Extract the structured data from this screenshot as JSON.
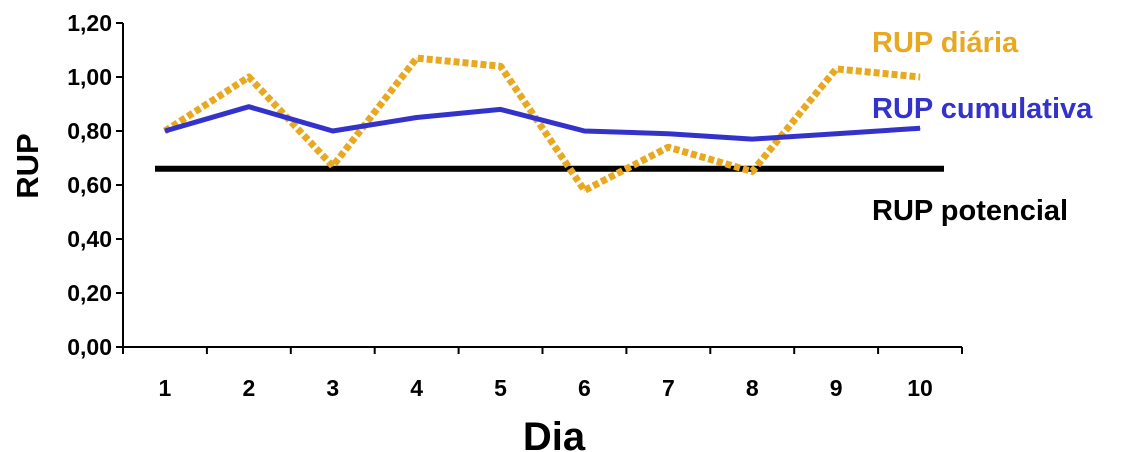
{
  "chart_data": {
    "type": "line",
    "xlabel": "Dia",
    "ylabel": "RUP",
    "ylim": [
      0,
      1.2
    ],
    "yticks": [
      "0,00",
      "0,20",
      "0,40",
      "0,60",
      "0,80",
      "1,00",
      "1,20"
    ],
    "categories": [
      "1",
      "2",
      "3",
      "4",
      "5",
      "6",
      "7",
      "8",
      "9",
      "10"
    ],
    "series": [
      {
        "name": "RUP diária",
        "color": "#E8A820",
        "style": "dotted",
        "values": [
          0.8,
          1.0,
          0.67,
          1.07,
          1.04,
          0.58,
          0.74,
          0.65,
          1.03,
          1.0
        ]
      },
      {
        "name": "RUP cumulativa",
        "color": "#3333CC",
        "style": "solid",
        "values": [
          0.8,
          0.89,
          0.8,
          0.85,
          0.88,
          0.8,
          0.79,
          0.77,
          0.79,
          0.81
        ]
      },
      {
        "name": "RUP potencial",
        "color": "#000000",
        "style": "solid",
        "values": [
          0.66,
          0.66,
          0.66,
          0.66,
          0.66,
          0.66,
          0.66,
          0.66,
          0.66,
          0.66
        ]
      }
    ]
  }
}
